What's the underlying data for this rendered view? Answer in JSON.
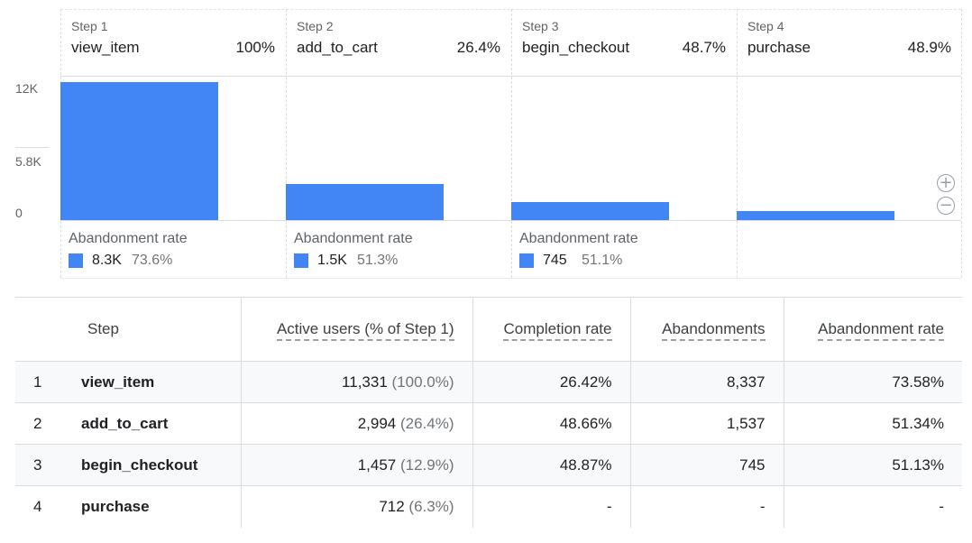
{
  "chart_data": {
    "type": "bar",
    "categories": [
      "view_item",
      "add_to_cart",
      "begin_checkout",
      "purchase"
    ],
    "values": [
      11331,
      2994,
      1457,
      712
    ],
    "ylim": [
      0,
      12000
    ],
    "y_ticks": [
      {
        "label": "12K",
        "value": 12000
      },
      {
        "label": "5.8K",
        "value": 5800
      },
      {
        "label": "0",
        "value": 0
      }
    ],
    "legend": "none"
  },
  "funnel": {
    "steps": [
      {
        "step_label": "Step 1",
        "name": "view_item",
        "pct": "100%",
        "abandon_title": "Abandonment rate",
        "abandon_value": "8.3K",
        "abandon_pct": "73.6%"
      },
      {
        "step_label": "Step 2",
        "name": "add_to_cart",
        "pct": "26.4%",
        "abandon_title": "Abandonment rate",
        "abandon_value": "1.5K",
        "abandon_pct": "51.3%"
      },
      {
        "step_label": "Step 3",
        "name": "begin_checkout",
        "pct": "48.7%",
        "abandon_title": "Abandonment rate",
        "abandon_value": "745",
        "abandon_pct": "51.1%"
      },
      {
        "step_label": "Step 4",
        "name": "purchase",
        "pct": "48.9%"
      }
    ],
    "bar_color": "#4285f4",
    "zoom_in_symbol": "+",
    "zoom_out_symbol": "−"
  },
  "table": {
    "headers": {
      "step": "Step",
      "active_users": "Active users (% of Step 1)",
      "completion_rate": "Completion rate",
      "abandonments": "Abandonments",
      "abandonment_rate": "Abandonment rate"
    },
    "rows": [
      {
        "idx": "1",
        "name": "view_item",
        "users": "11,331",
        "users_pct": "(100.0%)",
        "completion": "26.42%",
        "abandonments": "8,337",
        "abandon_rate": "73.58%"
      },
      {
        "idx": "2",
        "name": "add_to_cart",
        "users": "2,994",
        "users_pct": "(26.4%)",
        "completion": "48.66%",
        "abandonments": "1,537",
        "abandon_rate": "51.34%"
      },
      {
        "idx": "3",
        "name": "begin_checkout",
        "users": "1,457",
        "users_pct": "(12.9%)",
        "completion": "48.87%",
        "abandonments": "745",
        "abandon_rate": "51.13%"
      },
      {
        "idx": "4",
        "name": "purchase",
        "users": "712",
        "users_pct": "(6.3%)",
        "completion": "-",
        "abandonments": "-",
        "abandon_rate": "-"
      }
    ]
  }
}
